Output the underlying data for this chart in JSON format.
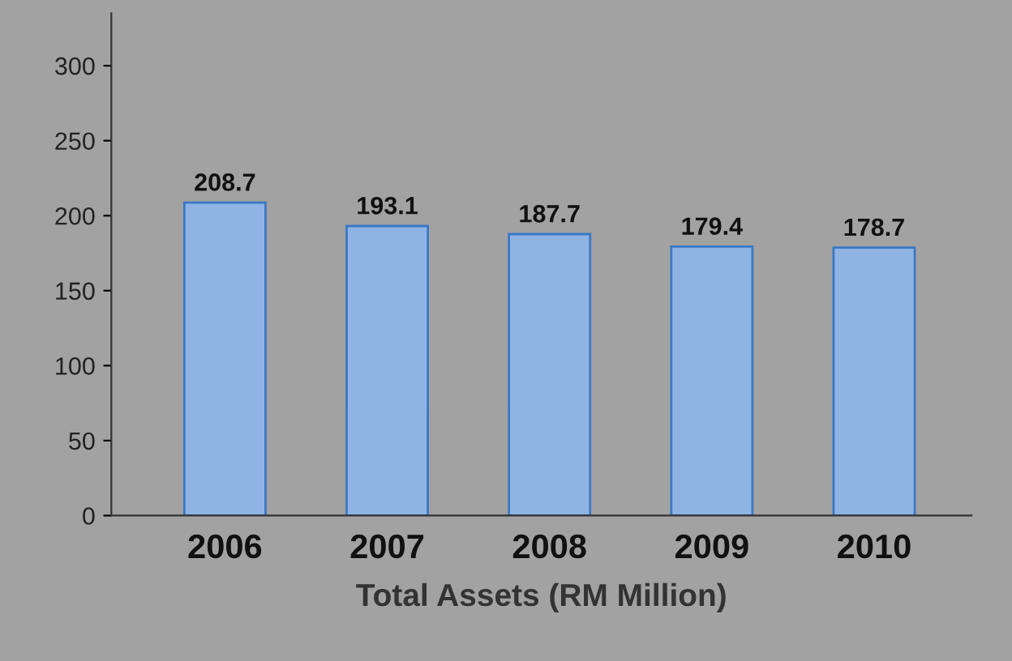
{
  "chart_data": {
    "type": "bar",
    "xlabel": "Total Assets (RM Million)",
    "categories": [
      "2006",
      "2007",
      "2008",
      "2009",
      "2010"
    ],
    "values": [
      208.7,
      193.1,
      187.7,
      179.4,
      178.7
    ],
    "color": "#8fb4e4",
    "ylim": [
      0,
      335
    ],
    "yticks": [
      0,
      50,
      100,
      150,
      200,
      250,
      300
    ],
    "grid": false,
    "data_labels": true
  }
}
